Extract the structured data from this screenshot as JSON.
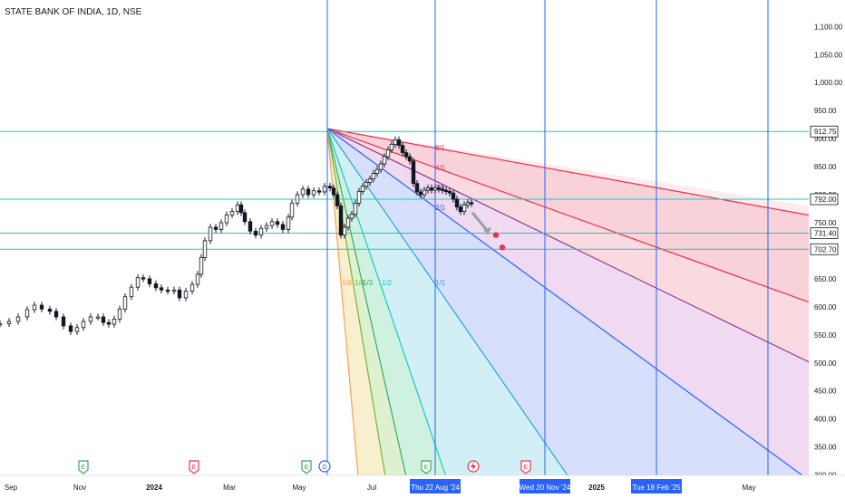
{
  "header": {
    "title": "STATE BANK OF INDIA, 1D, NSE"
  },
  "chart_data": {
    "type": "candlestick",
    "title": "STATE BANK OF INDIA, 1D, NSE",
    "y_axis": {
      "ticks": [
        "1,100.00",
        "1,050.00",
        "1,000.00",
        "950.00",
        "900.00",
        "850.00",
        "800.00",
        "750.00",
        "700.00",
        "650.00",
        "600.00",
        "550.00",
        "500.00",
        "450.00",
        "400.00",
        "350.00",
        "300.00"
      ],
      "tick_values": [
        1100,
        1050,
        1000,
        950,
        900,
        850,
        800,
        750,
        700,
        650,
        600,
        550,
        500,
        450,
        400,
        350,
        300
      ],
      "range": [
        297,
        1120
      ]
    },
    "x_axis": {
      "ticks": [
        "Sep",
        "Nov",
        "2024",
        "Mar",
        "May",
        "Jul",
        "2025",
        "May"
      ],
      "highlighted": [
        "Thu 22 Aug '24",
        "Wed 20 Nov '24",
        "Tue 18 Feb '25"
      ]
    },
    "price_levels": [
      {
        "label": "912.75",
        "value": 912.75
      },
      {
        "label": "792.00",
        "value": 792.0
      },
      {
        "label": "731.40",
        "value": 731.4
      },
      {
        "label": "702.70",
        "value": 702.7
      }
    ],
    "price_series": [
      [
        0,
        570
      ],
      [
        10,
        574
      ],
      [
        20,
        582
      ],
      [
        30,
        595
      ],
      [
        38,
        603
      ],
      [
        46,
        596
      ],
      [
        55,
        592
      ],
      [
        62,
        582
      ],
      [
        70,
        566
      ],
      [
        78,
        556
      ],
      [
        85,
        563
      ],
      [
        92,
        574
      ],
      [
        100,
        582
      ],
      [
        108,
        582
      ],
      [
        114,
        572
      ],
      [
        120,
        569
      ],
      [
        126,
        578
      ],
      [
        132,
        596
      ],
      [
        138,
        618
      ],
      [
        145,
        635
      ],
      [
        152,
        652
      ],
      [
        158,
        650
      ],
      [
        165,
        641
      ],
      [
        172,
        634
      ],
      [
        178,
        630
      ],
      [
        185,
        628
      ],
      [
        192,
        630
      ],
      [
        198,
        616
      ],
      [
        205,
        628
      ],
      [
        212,
        640
      ],
      [
        218,
        658
      ],
      [
        222,
        688
      ],
      [
        226,
        718
      ],
      [
        232,
        742
      ],
      [
        238,
        738
      ],
      [
        244,
        750
      ],
      [
        250,
        764
      ],
      [
        256,
        770
      ],
      [
        262,
        782
      ],
      [
        266,
        768
      ],
      [
        270,
        752
      ],
      [
        276,
        735
      ],
      [
        282,
        728
      ],
      [
        288,
        740
      ],
      [
        294,
        745
      ],
      [
        300,
        752
      ],
      [
        306,
        747
      ],
      [
        312,
        738
      ],
      [
        318,
        760
      ],
      [
        322,
        785
      ],
      [
        328,
        800
      ],
      [
        334,
        810
      ],
      [
        340,
        800
      ],
      [
        346,
        807
      ],
      [
        352,
        805
      ],
      [
        358,
        815
      ],
      [
        364,
        812
      ],
      [
        368,
        800
      ],
      [
        372,
        780
      ],
      [
        376,
        728
      ],
      [
        380,
        742
      ],
      [
        384,
        758
      ],
      [
        388,
        765
      ],
      [
        392,
        785
      ],
      [
        396,
        806
      ],
      [
        400,
        815
      ],
      [
        404,
        822
      ],
      [
        408,
        828
      ],
      [
        412,
        838
      ],
      [
        416,
        845
      ],
      [
        420,
        855
      ],
      [
        424,
        868
      ],
      [
        428,
        880
      ],
      [
        432,
        890
      ],
      [
        436,
        898
      ],
      [
        440,
        888
      ],
      [
        444,
        875
      ],
      [
        448,
        868
      ],
      [
        452,
        860
      ],
      [
        456,
        820
      ],
      [
        460,
        805
      ],
      [
        464,
        800
      ],
      [
        468,
        808
      ],
      [
        472,
        812
      ],
      [
        476,
        808
      ],
      [
        480,
        812
      ],
      [
        484,
        810
      ],
      [
        488,
        808
      ],
      [
        492,
        806
      ],
      [
        496,
        803
      ],
      [
        500,
        792
      ],
      [
        504,
        778
      ],
      [
        508,
        770
      ],
      [
        512,
        782
      ],
      [
        516,
        786
      ],
      [
        520,
        784
      ]
    ],
    "markers": [
      {
        "x": 547,
        "value": 728
      },
      {
        "x": 554,
        "value": 706
      }
    ],
    "gann_fan": {
      "origin_x": 361,
      "origin_value": 918,
      "lines": [
        {
          "label": "8/1",
          "dx": 537,
          "value": 762
        },
        {
          "label": "4/1",
          "dx": 537,
          "value": 605
        },
        {
          "label": "3/1",
          "dx": 537,
          "value": 497
        },
        {
          "label": "2/1",
          "dx": 526,
          "value": 297
        },
        {
          "label": "1/1",
          "dx": 266,
          "value": 297
        },
        {
          "label": "1/2",
          "dx": 131,
          "value": 297
        },
        {
          "label": "1/3",
          "dx": 87,
          "value": 297
        },
        {
          "label": "1/4",
          "dx": 64,
          "value": 297
        },
        {
          "label": "1/8",
          "dx": 34,
          "value": 297
        }
      ],
      "fills": [
        "#f7c9d2",
        "#f9d2da",
        "#ecd3ef",
        "#d0d9fb",
        "#c9ecf3",
        "#c6eedb",
        "#d7efc6",
        "#f6ecc4",
        "#fbdbbd"
      ]
    },
    "grid": true,
    "legend": "none"
  },
  "colors": {
    "axis_text": "#131722",
    "level_line": "#1ec9c4",
    "vline": "#2962ff",
    "candle_up": "#131722",
    "candle_down": "#131722",
    "marker": "#e8334e",
    "date_badge": "#2962ff",
    "earnings_green": "#3ba55d",
    "earnings_red": "#e8334e",
    "dividend_blue": "#2962ff"
  },
  "events": {
    "labels": [
      "E",
      "E",
      "E",
      "D",
      "E",
      "E"
    ]
  }
}
